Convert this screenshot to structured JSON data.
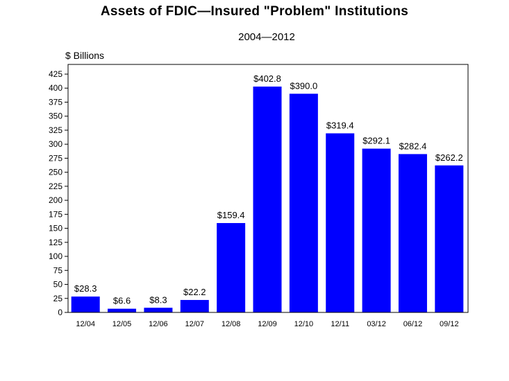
{
  "chart_data": {
    "type": "bar",
    "title": "Assets of FDIC—Insured \"Problem\" Institutions",
    "subtitle": "2004—2012",
    "unit_label": "$  Billions",
    "categories": [
      "12/04",
      "12/05",
      "12/06",
      "12/07",
      "12/08",
      "12/09",
      "12/10",
      "12/11",
      "03/12",
      "06/12",
      "09/12"
    ],
    "values": [
      28.3,
      6.6,
      8.3,
      22.2,
      159.4,
      402.8,
      390.0,
      319.4,
      292.1,
      282.4,
      262.2
    ],
    "value_labels": [
      "$28.3",
      "$6.6",
      "$8.3",
      "$22.2",
      "$159.4",
      "$402.8",
      "$390.0",
      "$319.4",
      "$292.1",
      "$282.4",
      "$262.2"
    ],
    "ylim": [
      0,
      425
    ],
    "yticks": [
      0,
      25,
      50,
      75,
      100,
      125,
      150,
      175,
      200,
      225,
      250,
      275,
      300,
      325,
      350,
      375,
      400,
      425
    ],
    "bar_color": "#0000ff",
    "grid": false,
    "legend": "none"
  }
}
